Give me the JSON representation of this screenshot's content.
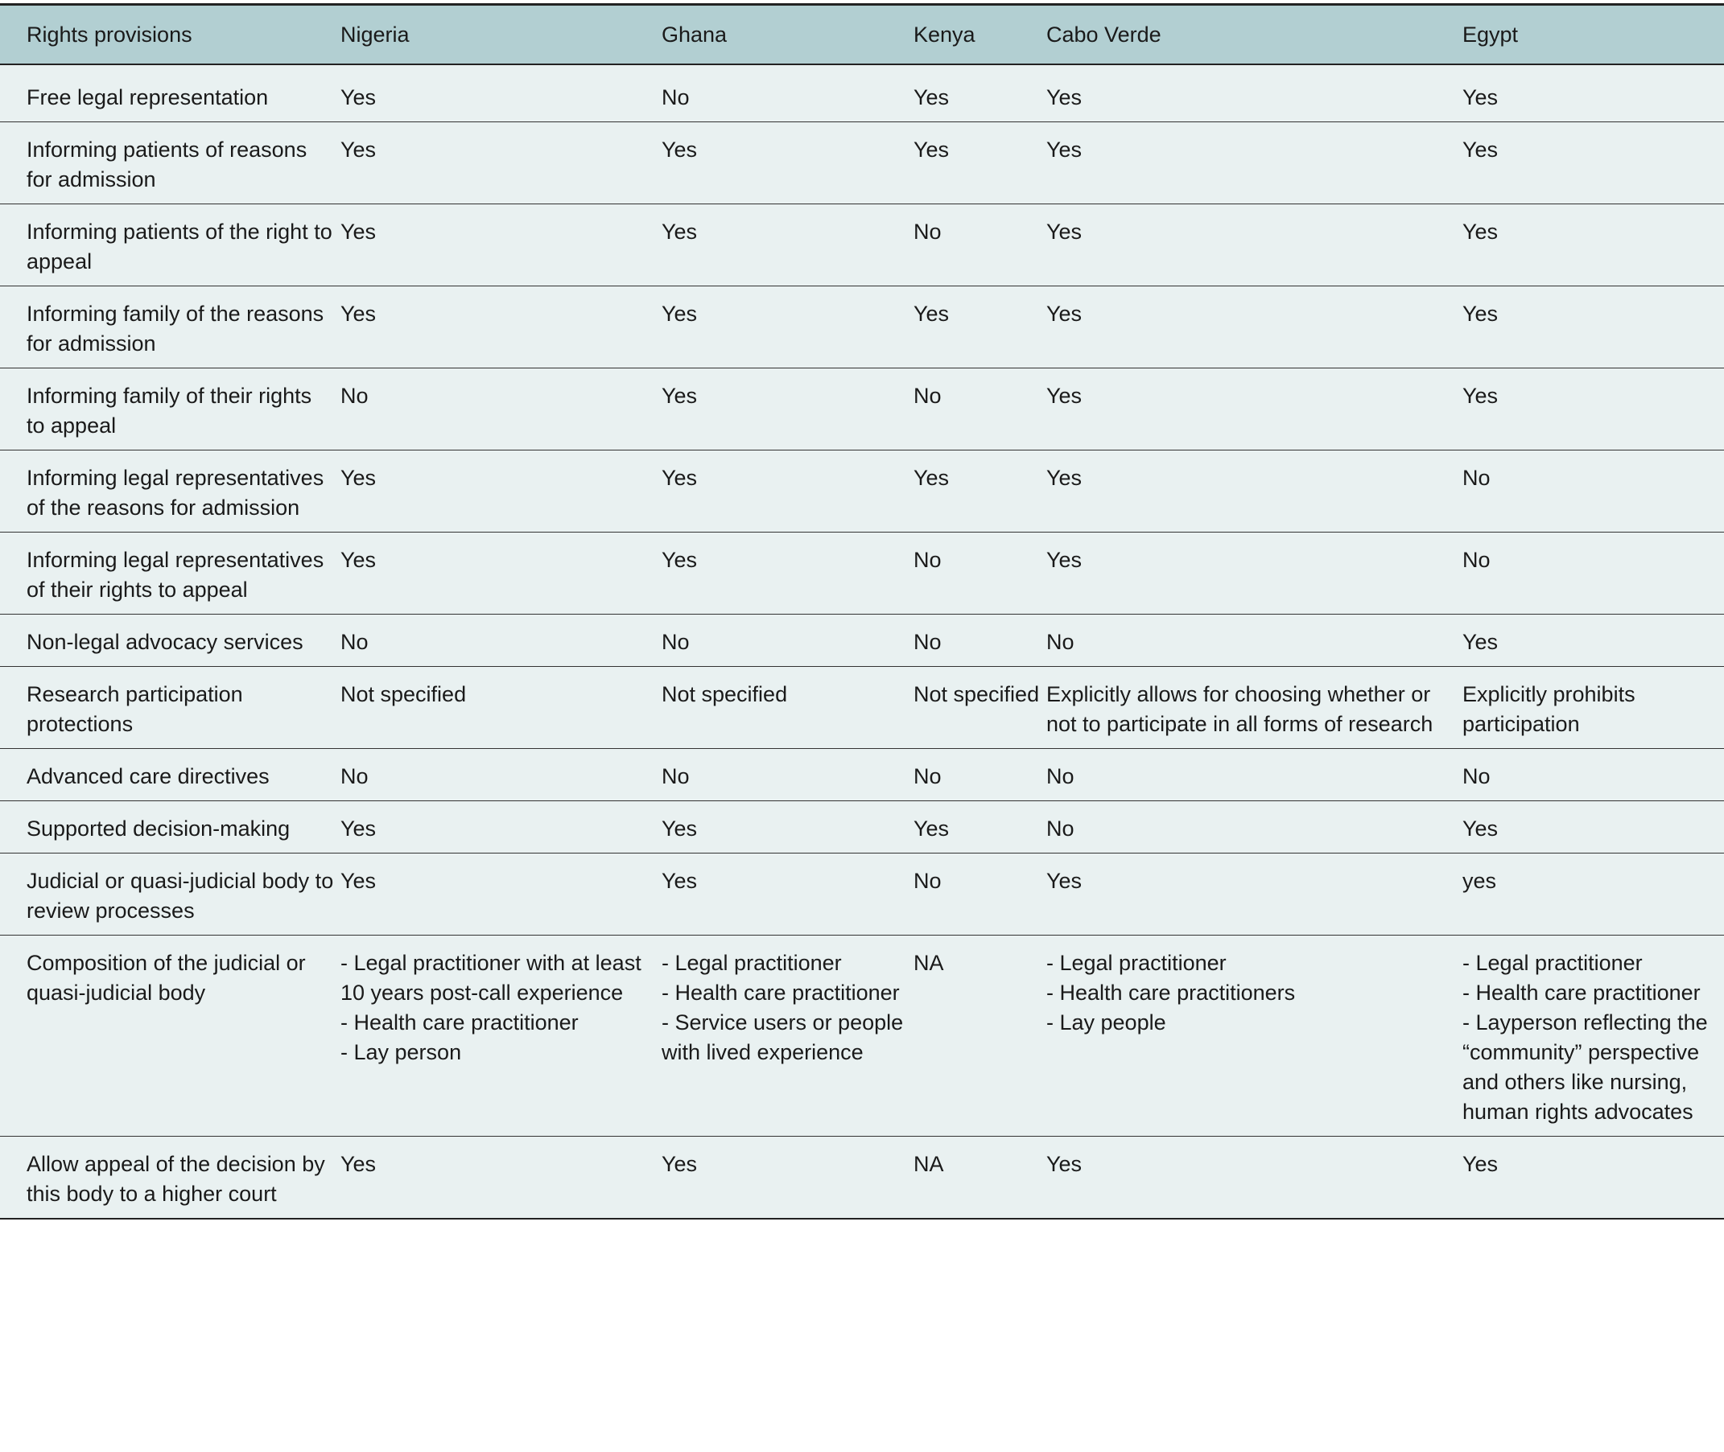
{
  "table": {
    "header": [
      "Rights provisions",
      "Nigeria",
      "Ghana",
      "Kenya",
      "Cabo Verde",
      "Egypt"
    ],
    "rows": [
      [
        "Free legal representation",
        "Yes",
        "No",
        "Yes",
        "Yes",
        "Yes"
      ],
      [
        "Informing patients of reasons for admission",
        "Yes",
        "Yes",
        "Yes",
        "Yes",
        "Yes"
      ],
      [
        "Informing patients of the right to appeal",
        "Yes",
        "Yes",
        "No",
        "Yes",
        "Yes"
      ],
      [
        "Informing family of the reasons for admission",
        "Yes",
        "Yes",
        "Yes",
        "Yes",
        "Yes"
      ],
      [
        "Informing family of their rights to appeal",
        "No",
        "Yes",
        "No",
        "Yes",
        "Yes"
      ],
      [
        "Informing legal representatives of the reasons for admission",
        "Yes",
        "Yes",
        "Yes",
        "Yes",
        "No"
      ],
      [
        "Informing legal representatives of their rights to appeal",
        "Yes",
        "Yes",
        "No",
        "Yes",
        "No"
      ],
      [
        "Non-legal advocacy services",
        "No",
        "No",
        "No",
        "No",
        "Yes"
      ],
      [
        "Research participation protections",
        "Not specified",
        "Not specified",
        "Not specified",
        "Explicitly allows for choosing whether or not to participate in all forms of research",
        "Explicitly prohibits participation"
      ],
      [
        "Advanced care directives",
        "No",
        "No",
        "No",
        "No",
        "No"
      ],
      [
        "Supported decision-making",
        "Yes",
        "Yes",
        "Yes",
        "No",
        "Yes"
      ],
      [
        "Judicial or quasi-judicial body to review processes",
        "Yes",
        "Yes",
        "No",
        "Yes",
        "yes"
      ],
      [
        "Composition of the judicial or quasi-judicial body",
        [
          "- Legal practitioner with at least 10 years post-call experience",
          "- Health care practitioner",
          "- Lay person"
        ],
        [
          "- Legal practitioner",
          "- Health care practitioner",
          "- Service users or people with lived experience"
        ],
        "NA",
        [
          "- Legal practitioner",
          "- Health care practitioners",
          "- Lay people"
        ],
        [
          "- Legal practitioner",
          "- Health care practitioner",
          "- Layperson reflecting the “community” perspective",
          "and others like nursing, human rights advocates"
        ]
      ],
      [
        "Allow appeal of the decision by this body to a higher court",
        "Yes",
        "Yes",
        "NA",
        "Yes",
        "Yes"
      ]
    ]
  }
}
